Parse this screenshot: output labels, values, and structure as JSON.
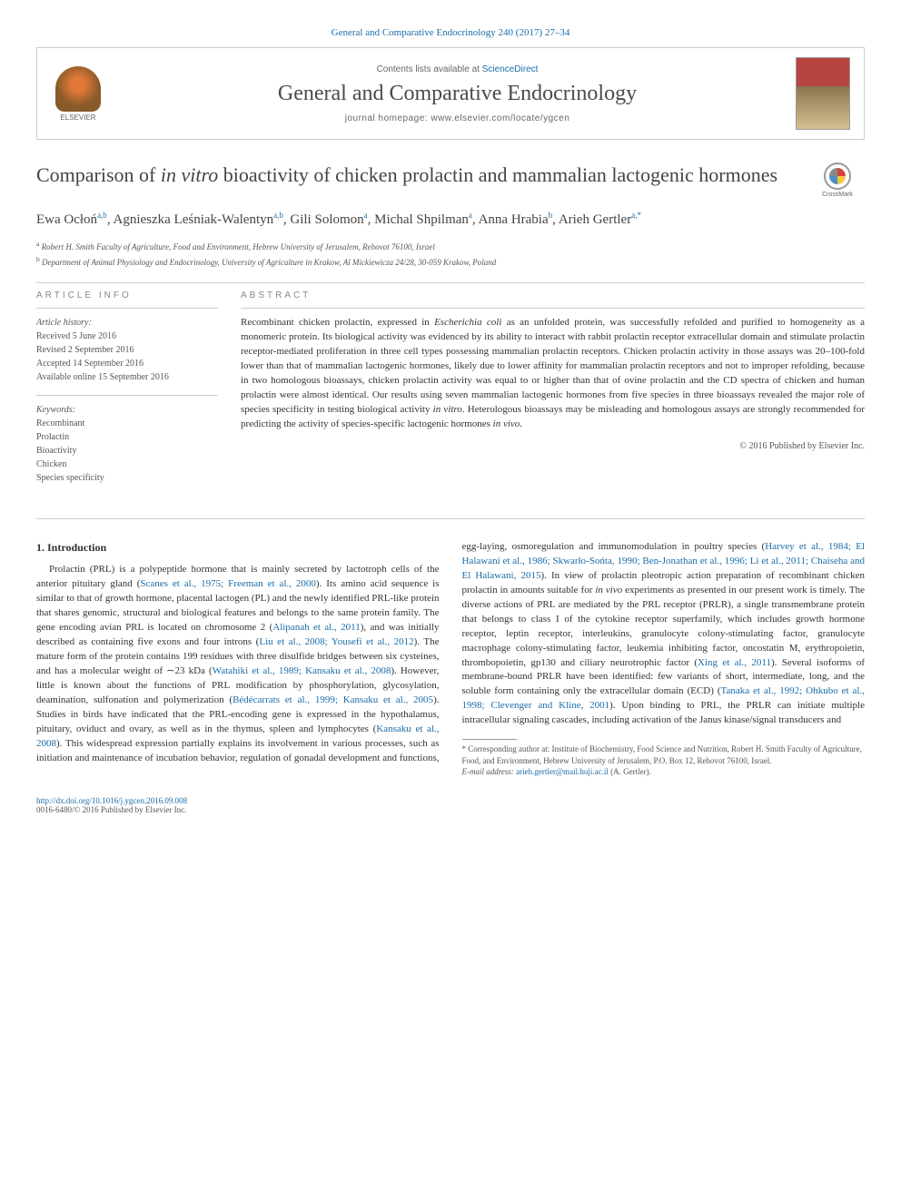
{
  "header": {
    "citation": "General and Comparative Endocrinology 240 (2017) 27–34",
    "contents_prefix": "Contents lists available at ",
    "contents_link": "ScienceDirect",
    "journal_name": "General and Comparative Endocrinology",
    "homepage_prefix": "journal homepage: ",
    "homepage_url": "www.elsevier.com/locate/ygcen",
    "elsevier": "ELSEVIER"
  },
  "article": {
    "title_pre": "Comparison of ",
    "title_italic": "in vitro",
    "title_post": " bioactivity of chicken prolactin and mammalian lactogenic hormones",
    "crossmark": "CrossMark"
  },
  "authors": {
    "list": "Ewa Ocłoń",
    "a1_sup": "a,b",
    "a2": ", Agnieszka Leśniak-Walentyn",
    "a2_sup": "a,b",
    "a3": ", Gili Solomon",
    "a3_sup": "a",
    "a4": ", Michal Shpilman",
    "a4_sup": "a",
    "a5": ", Anna Hrabia",
    "a5_sup": "b",
    "a6": ", Arieh Gertler",
    "a6_sup": "a,",
    "corr": "*"
  },
  "affiliations": {
    "a": "Robert H. Smith Faculty of Agriculture, Food and Environment, Hebrew University of Jerusalem, Rehovot 76100, Israel",
    "b": "Department of Animal Physiology and Endocrinology, University of Agriculture in Krakow, Al Mickiewicza 24/28, 30-059 Krakow, Poland"
  },
  "info": {
    "heading": "article info",
    "history_label": "Article history:",
    "received": "Received 5 June 2016",
    "revised": "Revised 2 September 2016",
    "accepted": "Accepted 14 September 2016",
    "online": "Available online 15 September 2016",
    "keywords_label": "Keywords:",
    "kw1": "Recombinant",
    "kw2": "Prolactin",
    "kw3": "Bioactivity",
    "kw4": "Chicken",
    "kw5": "Species specificity"
  },
  "abstract": {
    "heading": "abstract",
    "text_1": "Recombinant chicken prolactin, expressed in ",
    "text_1i": "Escherichia coli",
    "text_2": " as an unfolded protein, was successfully refolded and purified to homogeneity as a monomeric protein. Its biological activity was evidenced by its ability to interact with rabbit prolactin receptor extracellular domain and stimulate prolactin receptor-mediated proliferation in three cell types possessing mammalian prolactin receptors. Chicken prolactin activity in those assays was 20–100-fold lower than that of mammalian lactogenic hormones, likely due to lower affinity for mammalian prolactin receptors and not to improper refolding, because in two homologous bioassays, chicken prolactin activity was equal to or higher than that of ovine prolactin and the CD spectra of chicken and human prolactin were almost identical. Our results using seven mammalian lactogenic hormones from five species in three bioassays revealed the major role of species specificity in testing biological activity ",
    "text_2i": "in vitro",
    "text_3": ". Heterologous bioassays may be misleading and homologous assays are strongly recommended for predicting the activity of species-specific lactogenic hormones ",
    "text_3i": "in vivo",
    "text_4": ".",
    "copyright": "© 2016 Published by Elsevier Inc."
  },
  "body": {
    "section_heading": "1. Introduction",
    "p1a": "Prolactin (PRL) is a polypeptide hormone that is mainly secreted by lactotroph cells of the anterior pituitary gland (",
    "c1": "Scanes et al., 1975; Freeman et al., 2000",
    "p1b": "). Its amino acid sequence is similar to that of growth hormone, placental lactogen (PL) and the newly identified PRL-like protein that shares genomic, structural and biological features and belongs to the same protein family. The gene encoding avian PRL is located on chromosome 2 (",
    "c2": "Alipanah et al., 2011",
    "p1c": "), and was initially described as containing five exons and four introns (",
    "c3": "Liu et al., 2008; Yousefi et al., 2012",
    "p1d": "). The mature form of the protein contains 199 residues with three disulfide bridges between six cysteines, and has a molecular weight of ∼23 kDa (",
    "c4": "Watahiki et al., 1989; Kansaku et al., 2008",
    "p1e": "). However, little is known about the functions of PRL modification by phosphorylation, glycosylation, deamination, sulfonation and polymerization (",
    "c5": "Bédécarrats et al., 1999; Kansaku et al., 2005",
    "p1f": "). Studies in birds have indicated that the PRL-encoding gene is expressed in the ",
    "p2a": "hypothalamus, pituitary, oviduct and ovary, as well as in the thymus, spleen and lymphocytes (",
    "c6": "Kansaku et al., 2008",
    "p2b": "). This widespread expression partially explains its involvement in various processes, such as initiation and maintenance of incubation behavior, regulation of gonadal development and functions, egg-laying, osmoregulation and immunomodulation in poultry species (",
    "c7": "Harvey et al., 1984; El Halawani et al., 1986; Skwarło-Sońta, 1990; Ben-Jonathan et al., 1996; Li et al., 2011; Chaiseha and El Halawani, 2015",
    "p2c": "). In view of prolactin pleotropic action preparation of recombinant chicken prolactin in amounts suitable for ",
    "p2ci": "in vivo",
    "p2d": " experiments as presented in our present work is timely. The diverse actions of PRL are mediated by the PRL receptor (PRLR), a single transmembrane protein that belongs to class I of the cytokine receptor superfamily, which includes growth hormone receptor, leptin receptor, interleukins, granulocyte colony-stimulating factor, granulocyte macrophage colony-stimulating factor, leukemia inhibiting factor, oncostatin M, erythropoietin, thrombopoietin, gp130 and ciliary neurotrophic factor (",
    "c8": "Xing et al., 2011",
    "p2e": "). Several isoforms of membrane-bound PRLR have been identified: few variants of short, intermediate, long, and the soluble form containing only the extracellular domain (ECD) (",
    "c9": "Tanaka et al., 1992; Ohkubo et al., 1998; Clevenger and Kline, 2001",
    "p2f": "). Upon binding to PRL, the PRLR can initiate multiple intracellular signaling cascades, including activation of the Janus kinase/signal transducers and"
  },
  "footnote": {
    "corr_label": "* Corresponding author at: Institute of Biochemistry, Food Science and Nutrition, Robert H. Smith Faculty of Agriculture, Food, and Environment, Hebrew University of Jerusalem, P.O. Box 12, Rehovot 76100, Israel.",
    "email_label": "E-mail address:",
    "email": "arieh.gertler@mail.huji.ac.il",
    "email_name": " (A. Gertler)."
  },
  "footer": {
    "doi": "http://dx.doi.org/10.1016/j.ygcen.2016.09.008",
    "issn": "0016-6480/© 2016 Published by Elsevier Inc."
  },
  "colors": {
    "link": "#1a6ca8",
    "text": "#333333",
    "border": "#cccccc"
  }
}
